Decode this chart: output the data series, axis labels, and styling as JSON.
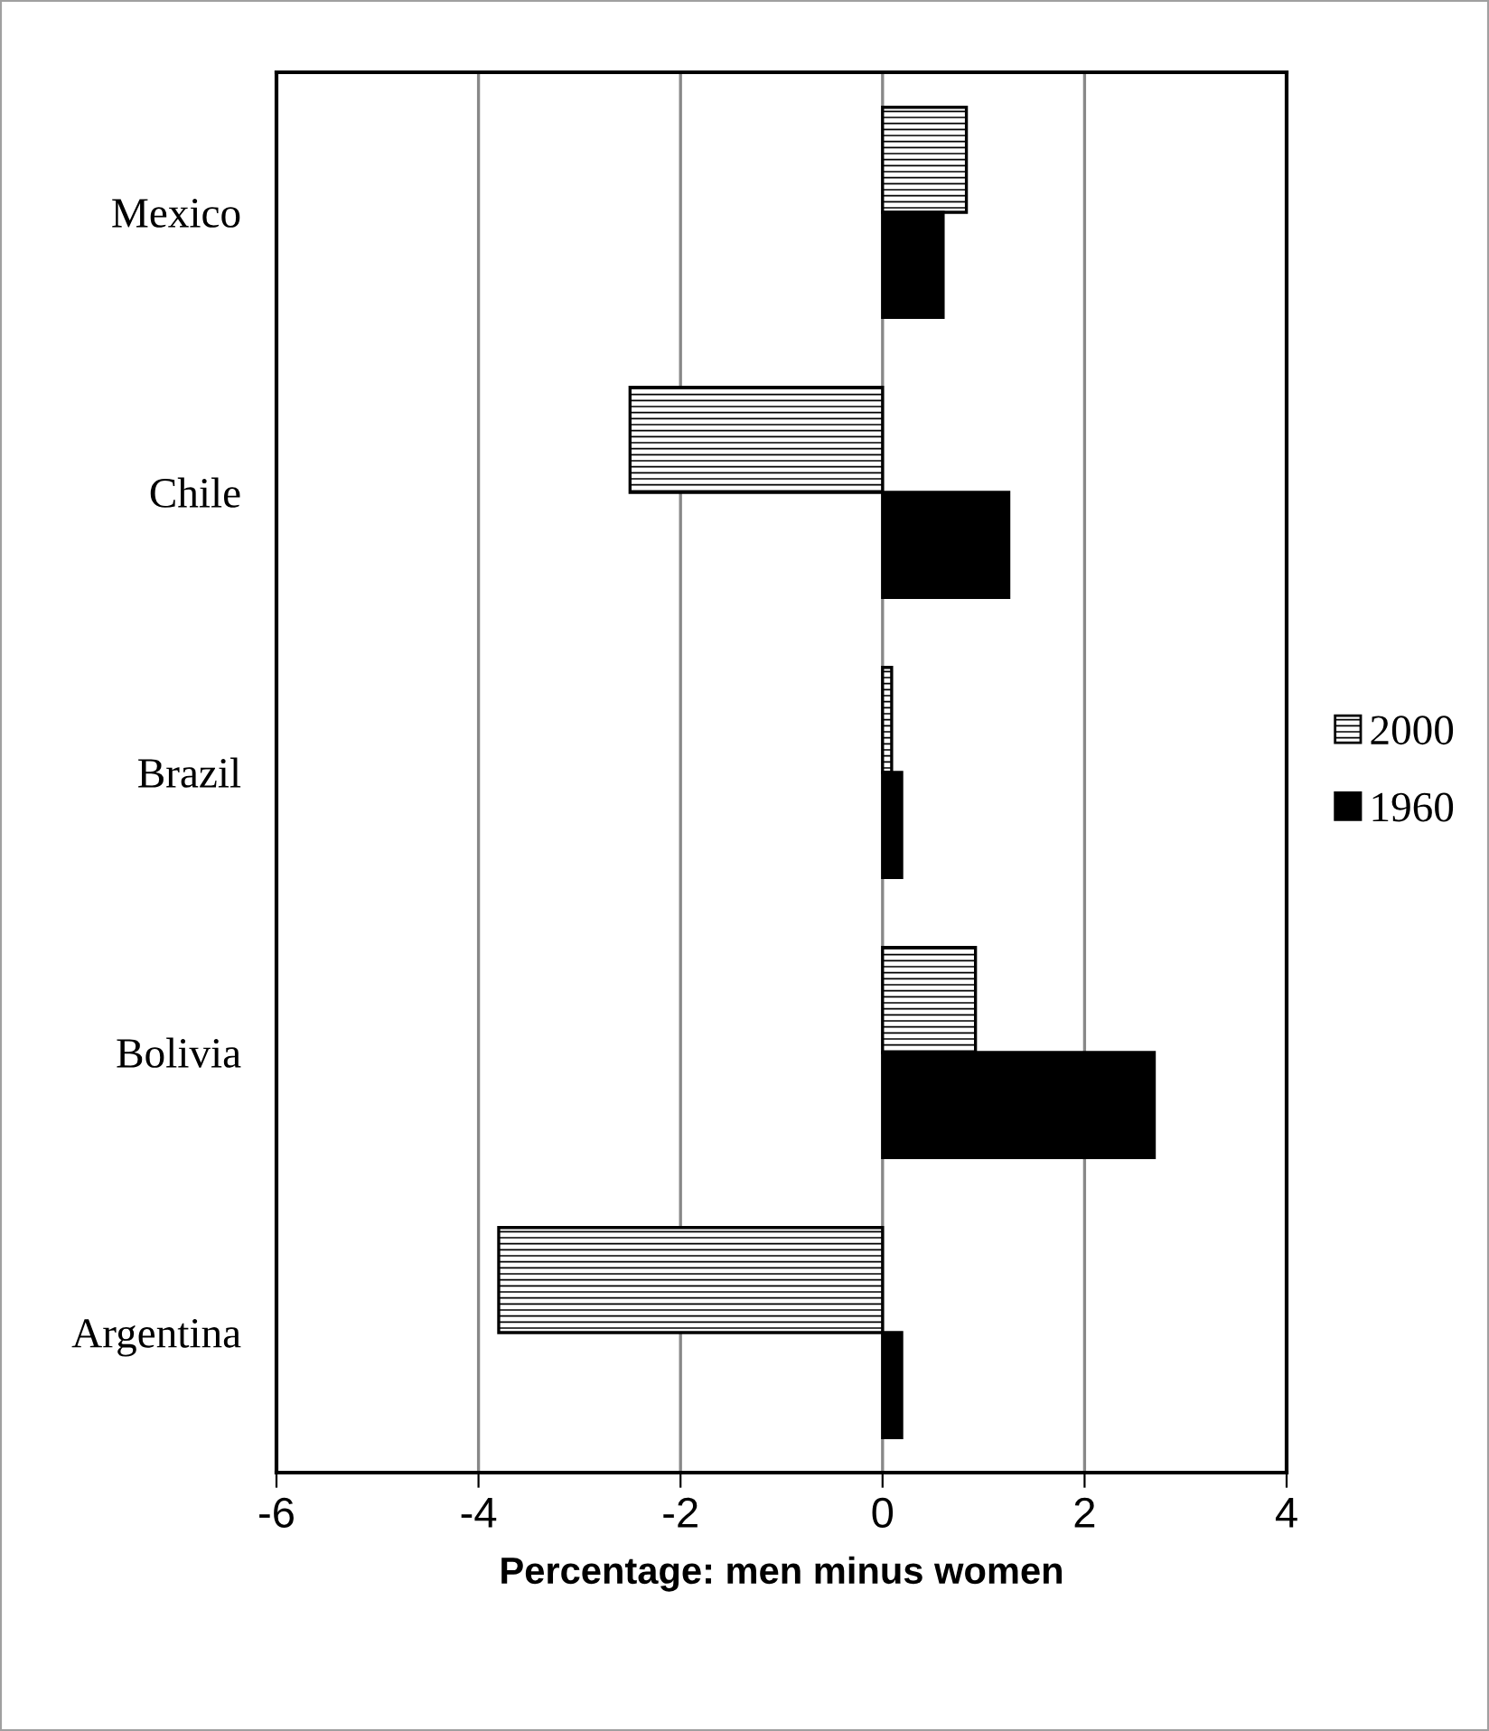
{
  "chart_data": {
    "type": "bar",
    "orientation": "horizontal",
    "xlabel": "Percentage: men minus women",
    "categories": [
      "Mexico",
      "Chile",
      "Brazil",
      "Bolivia",
      "Argentina"
    ],
    "series": [
      {
        "name": "2000",
        "color": "#000000",
        "values": [
          0.83,
          -2.5,
          0.09,
          0.92,
          -3.8
        ]
      },
      {
        "name": "1960",
        "color": "#000000",
        "values": [
          0.6,
          1.25,
          0.19,
          2.69,
          0.19
        ]
      }
    ],
    "xlim": [
      -6,
      4
    ],
    "xticks": [
      -6,
      -4,
      -2,
      0,
      2,
      4
    ],
    "grid": "x",
    "legend": "right"
  }
}
